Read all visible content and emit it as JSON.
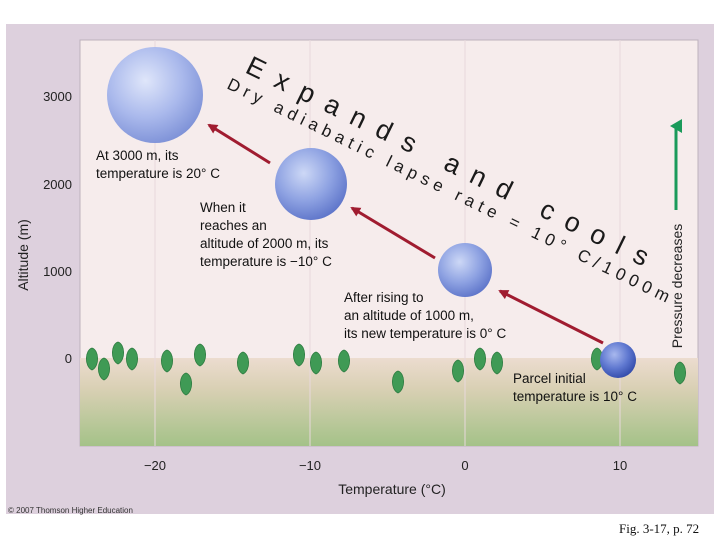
{
  "axes": {
    "y_label": "Altitude (m)",
    "x_label": "Temperature (°C)",
    "y_ticks": [
      "3000",
      "2000",
      "1000",
      "0"
    ],
    "x_ticks": [
      "−20",
      "−10",
      "0",
      "10"
    ]
  },
  "headline": {
    "expands_and_cools": "Expands and cools",
    "dry_adiabatic": "Dry adiabatic lapse rate = 10° C/1000m"
  },
  "pressure_label": "Pressure decreases",
  "parcels": [
    {
      "altitude_m": 0,
      "temperature_c": 10,
      "caption": [
        "Parcel initial",
        "temperature is 10° C"
      ]
    },
    {
      "altitude_m": 1000,
      "temperature_c": 0,
      "caption": [
        "After rising to",
        "an altitude of 1000 m,",
        "its new temperature is 0° C"
      ]
    },
    {
      "altitude_m": 2000,
      "temperature_c": -10,
      "caption": [
        "When it",
        "reaches an",
        "altitude of 2000 m, its",
        "temperature is −10° C"
      ]
    },
    {
      "altitude_m": 3000,
      "temperature_c": -20,
      "caption": [
        "At 3000 m, its",
        "temperature is      20° C"
      ]
    }
  ],
  "copyright": "© 2007 Thomson Higher Education",
  "figure_ref": "Fig. 3-17, p. 72",
  "colors": {
    "frame_bg": "#ddd0dd",
    "sky": "#f6ecec",
    "ground_top": "#e8d8cc",
    "ground_bottom": "#a8c48c",
    "arrow_red": "#a01c30",
    "arrow_green": "#1a9a5a",
    "tree": "#3f9a55"
  }
}
